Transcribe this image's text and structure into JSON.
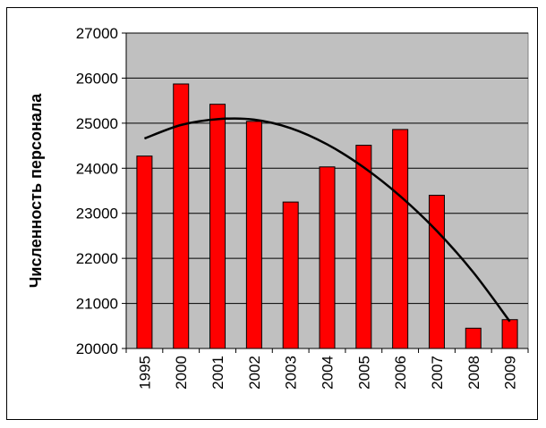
{
  "chart_data": {
    "type": "bar",
    "ylabel": "Численность персонала",
    "xlabel": "",
    "title": "",
    "categories": [
      "1995",
      "2000",
      "2001",
      "2002",
      "2003",
      "2004",
      "2005",
      "2006",
      "2007",
      "2008",
      "2009"
    ],
    "values": [
      24270,
      25870,
      25420,
      25040,
      23250,
      24030,
      24510,
      24860,
      23400,
      20450,
      20640
    ],
    "trendline": {
      "type": "polynomial",
      "x": [
        "1995",
        "2000",
        "2001",
        "2002",
        "2003",
        "2004",
        "2005",
        "2006",
        "2007",
        "2008",
        "2009"
      ],
      "values": [
        24660,
        24960,
        25090,
        25080,
        24890,
        24530,
        24020,
        23380,
        22610,
        21690,
        20600
      ]
    },
    "ylim": [
      20000,
      27000
    ],
    "yticks": [
      20000,
      21000,
      22000,
      23000,
      24000,
      25000,
      26000,
      27000
    ],
    "grid": true,
    "colors": {
      "bar": "#ff0000",
      "bar_border": "#000000",
      "plot_background": "#c0c0c0",
      "trendline": "#000000"
    }
  }
}
